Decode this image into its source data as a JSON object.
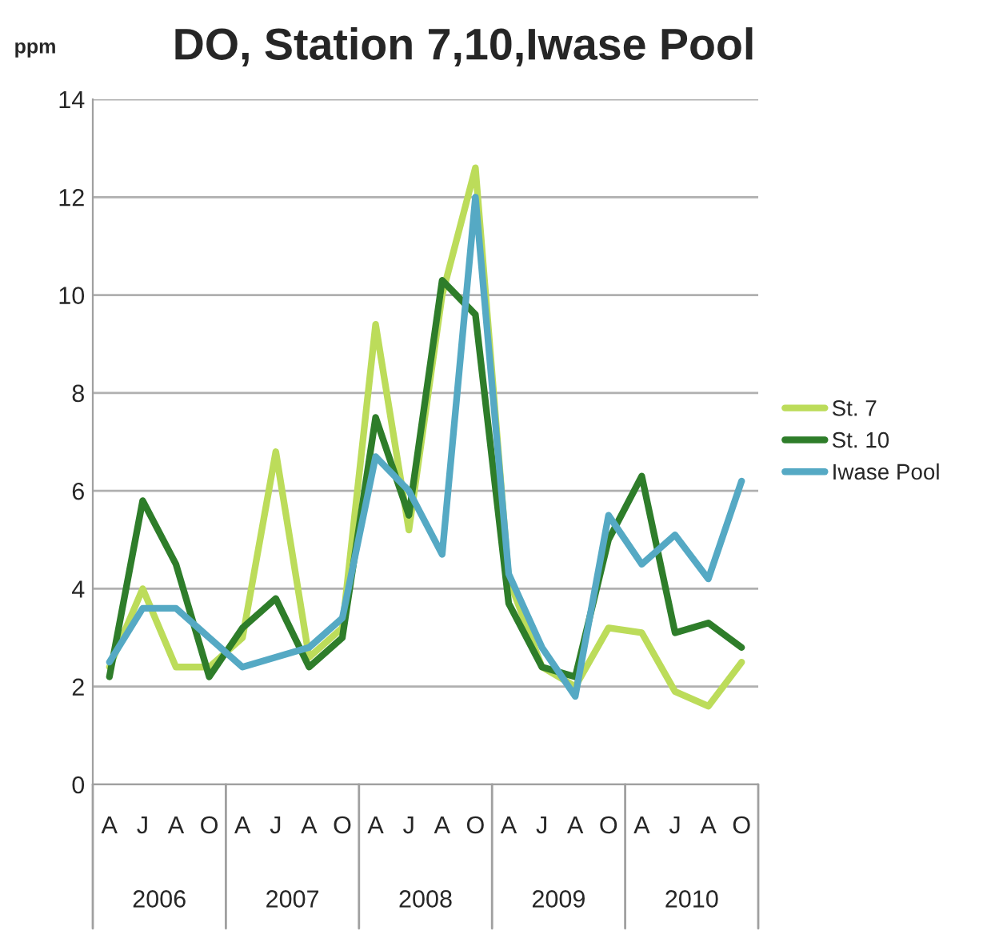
{
  "chart_data": {
    "type": "line",
    "title": "DO, Station 7,10,Iwase Pool",
    "ylabel": "ppm",
    "categories": [
      "A",
      "J",
      "A",
      "O",
      "A",
      "J",
      "A",
      "O",
      "A",
      "J",
      "A",
      "O",
      "A",
      "J",
      "A",
      "O",
      "A",
      "J",
      "A",
      "O"
    ],
    "series": [
      {
        "name": "St. 7",
        "color": "#bcdc5a",
        "values": [
          2.4,
          4.0,
          2.4,
          2.4,
          3.0,
          6.8,
          2.6,
          3.2,
          9.4,
          5.2,
          10.0,
          12.6,
          4.2,
          2.4,
          2.0,
          3.2,
          3.1,
          1.9,
          1.6,
          2.5
        ]
      },
      {
        "name": "St. 10",
        "color": "#2e7d2a",
        "values": [
          2.2,
          5.8,
          4.5,
          2.2,
          3.2,
          3.8,
          2.4,
          3.0,
          7.5,
          5.5,
          10.3,
          9.6,
          3.7,
          2.4,
          2.2,
          5.0,
          6.3,
          3.1,
          3.3,
          2.8
        ]
      },
      {
        "name": "Iwase Pool",
        "color": "#55a9c4",
        "values": [
          2.5,
          3.6,
          3.6,
          3.0,
          2.4,
          2.6,
          2.8,
          3.4,
          6.7,
          6.0,
          4.7,
          12.0,
          4.3,
          2.8,
          1.8,
          5.5,
          4.5,
          5.1,
          4.2,
          6.2
        ]
      }
    ],
    "annotations": [
      "2006",
      "2007",
      "2008",
      "2009",
      "2010"
    ],
    "ylim": [
      0,
      14
    ],
    "yticks": [
      0,
      2,
      4,
      6,
      8,
      10,
      12,
      14
    ],
    "grid": "y",
    "legend": "right"
  }
}
